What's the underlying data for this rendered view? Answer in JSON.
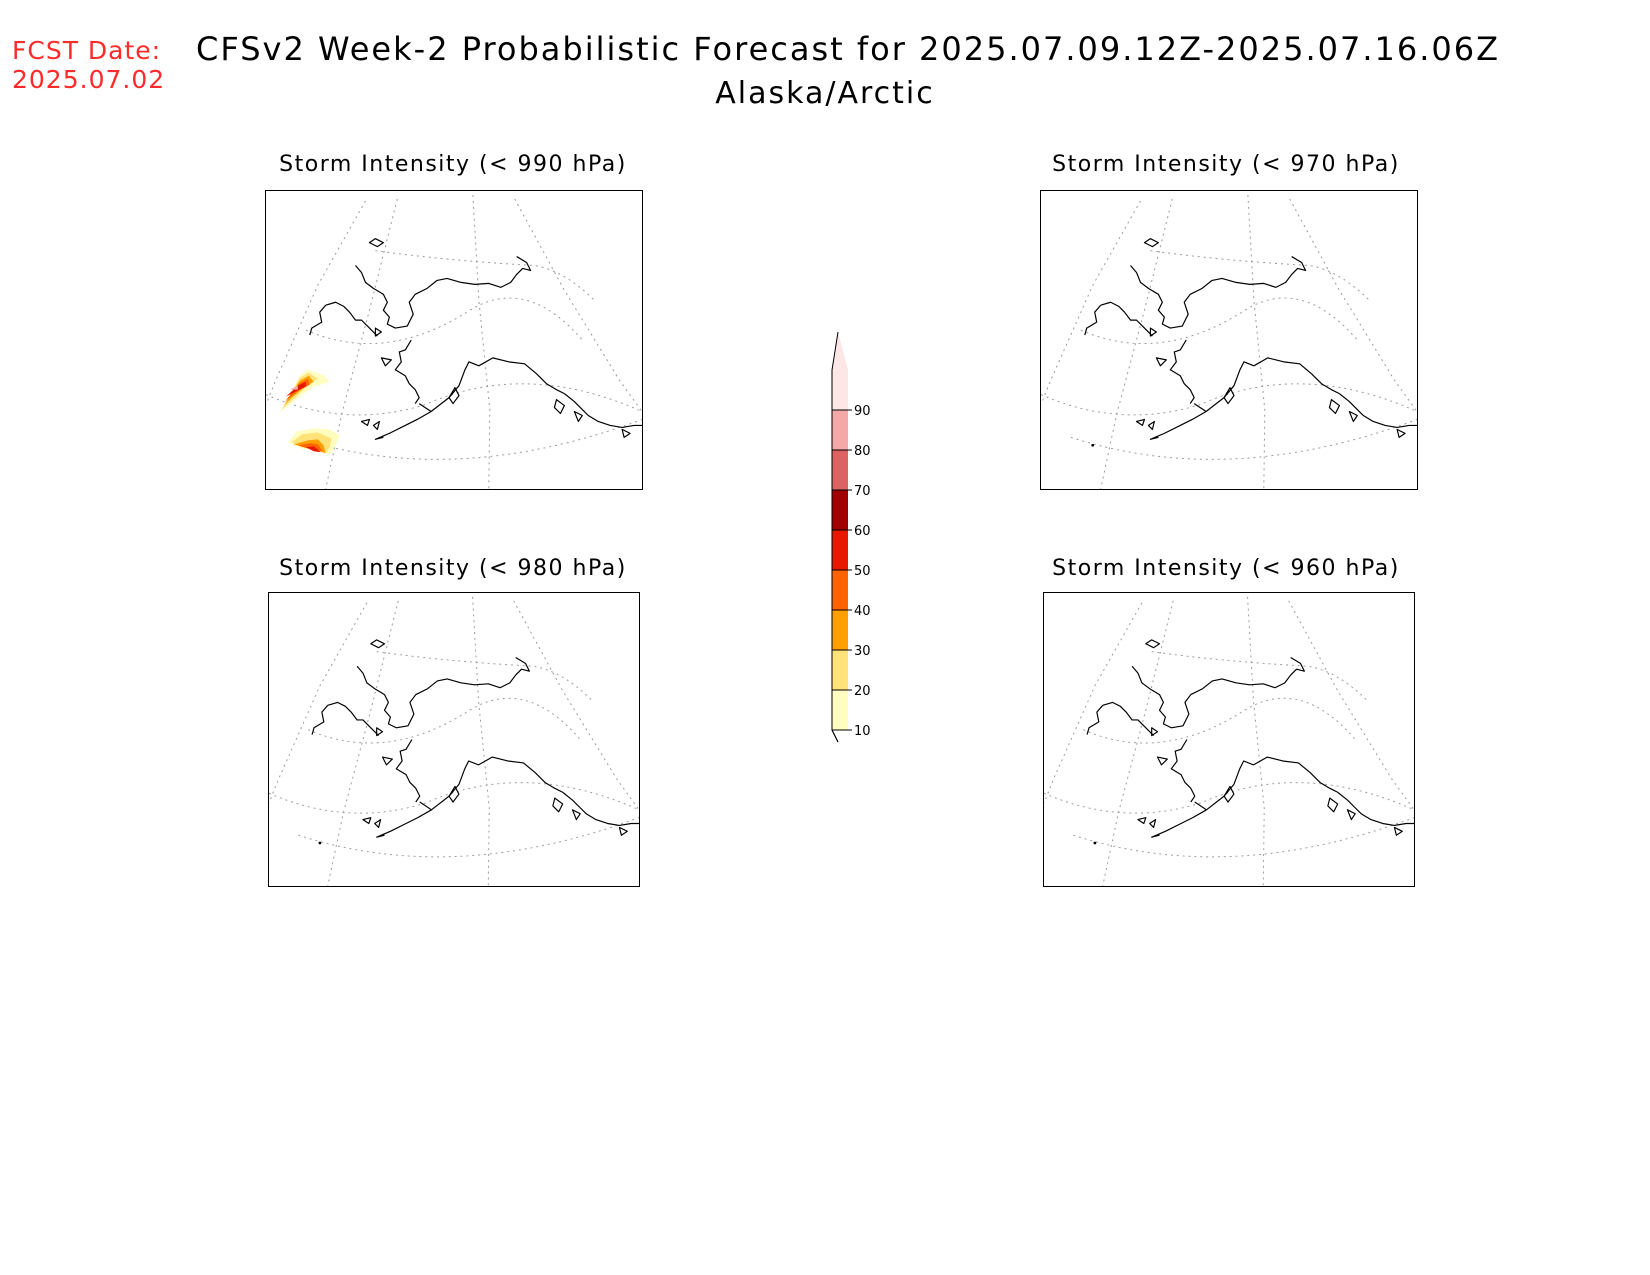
{
  "header": {
    "fcst_label": "FCST Date:",
    "fcst_date": "2025.07.02",
    "title": "CFSv2 Week-2 Probabilistic Forecast for 2025.07.09.12Z-2025.07.16.06Z",
    "subtitle": "Alaska/Arctic"
  },
  "panels": [
    {
      "title": "Storm Intensity (< 990 hPa)",
      "has_signal": true
    },
    {
      "title": "Storm Intensity (< 970 hPa)",
      "has_signal": false
    },
    {
      "title": "Storm Intensity (< 980 hPa)",
      "has_signal": false
    },
    {
      "title": "Storm Intensity (< 960 hPa)",
      "has_signal": false
    }
  ],
  "colorbar": {
    "levels": [
      "10",
      "20",
      "30",
      "40",
      "50",
      "60",
      "70",
      "80",
      "90"
    ],
    "colors": [
      "#fffdc0",
      "#ffe27a",
      "#ffa000",
      "#ff6400",
      "#e61800",
      "#a00000",
      "#dd6262",
      "#f5a8a8",
      "#fde6e6"
    ]
  }
}
